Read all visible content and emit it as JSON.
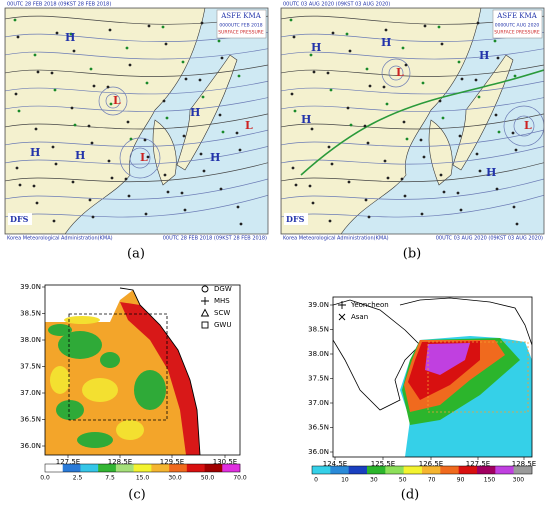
{
  "weather_maps": [
    {
      "label": "(a)",
      "header": "00UTC 28 FEB 2018 (09KST 28 FEB 2018)",
      "agency": "ASFE KMA",
      "valid": "0000UTC FEB 2018",
      "product": "SURFACE PRESSURE",
      "logo": "DFS",
      "footer_left": "Korea Meteorological Administration(KMA)",
      "footer_right": "00UTC 28 FEB 2018 (09KST 28 FEB 2018)",
      "highs": [
        "H",
        "H",
        "H",
        "H",
        "H"
      ],
      "lows": [
        "L",
        "L",
        "L"
      ]
    },
    {
      "label": "(b)",
      "header": "00UTC 03 AUG 2020 (09KST 03 AUG 2020)",
      "agency": "ASFE KMA",
      "valid": "0000UTC AUG 2020",
      "product": "SURFACE PRESSURE",
      "logo": "DFS",
      "footer_left": "Korea Meteorological Administration(KMA)",
      "footer_right": "00UTC 03 AUG 2020 (09KST 03 AUG 2020)",
      "highs": [
        "H",
        "H",
        "H",
        "H",
        "H"
      ],
      "lows": [
        "L",
        "L"
      ]
    }
  ],
  "rain_maps": [
    {
      "label": "(c)",
      "lat_labels": [
        "39.0N",
        "38.5N",
        "38.0N",
        "37.5N",
        "37.0N",
        "36.5N",
        "36.0N"
      ],
      "lon_labels": [
        "127.5E",
        "128.5E",
        "129.5E",
        "130.5E"
      ],
      "legend": [
        "DGW",
        "MHS",
        "SCW",
        "GWU"
      ],
      "colorbar_ticks": [
        "0.0",
        "2.5",
        "7.5",
        "15.0",
        "30.0",
        "50.0",
        "70.0"
      ]
    },
    {
      "label": "(d)",
      "lat_labels": [
        "39.0N",
        "38.5N",
        "38.0N",
        "37.5N",
        "37.0N",
        "36.5N",
        "36.0N"
      ],
      "lon_labels": [
        "124.5E",
        "125.5E",
        "126.5E",
        "127.5E",
        "128.5E"
      ],
      "legend": [
        "Yeoncheon",
        "Asan"
      ],
      "colorbar_ticks": [
        "0",
        "10",
        "30",
        "50",
        "70",
        "90",
        "150",
        "300"
      ]
    }
  ]
}
